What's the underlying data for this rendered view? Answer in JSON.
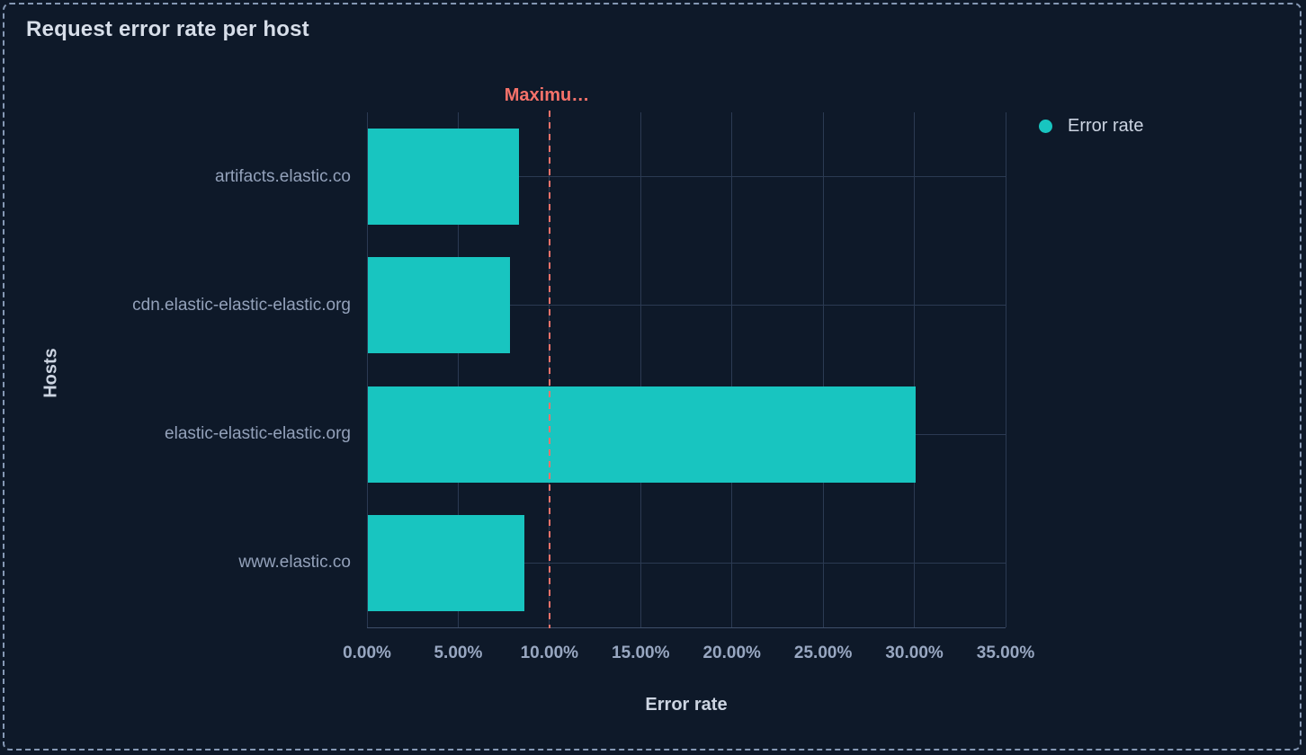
{
  "panel": {
    "title": "Request error rate per host"
  },
  "colors": {
    "bar": "#18c5c0",
    "threshold": "#f6726a",
    "background": "#0e1929"
  },
  "chart_data": {
    "type": "bar",
    "orientation": "horizontal",
    "title": "Request error rate per host",
    "categories": [
      "artifacts.elastic.co",
      "cdn.elastic-elastic-elastic.org",
      "elastic-elastic-elastic.org",
      "www.elastic.co"
    ],
    "series": [
      {
        "name": "Error rate",
        "color": "#18c5c0",
        "values": [
          8.3,
          7.8,
          30,
          8.6
        ]
      }
    ],
    "xlabel": "Error rate",
    "ylabel": "Hosts",
    "xlim": [
      0,
      35
    ],
    "x_tick_values": [
      0,
      5,
      10,
      15,
      20,
      25,
      30,
      35
    ],
    "x_tick_labels": [
      "0.00%",
      "5.00%",
      "10.00%",
      "15.00%",
      "20.00%",
      "25.00%",
      "30.00%",
      "35.00%"
    ],
    "grid": true,
    "value_unit": "%",
    "legend": {
      "position": "right",
      "items": [
        {
          "label": "Error rate",
          "color": "#18c5c0"
        }
      ]
    },
    "annotation": {
      "type": "vline",
      "value": 10,
      "label": "Maximu…",
      "color": "#f6726a",
      "style": "dashed"
    }
  }
}
